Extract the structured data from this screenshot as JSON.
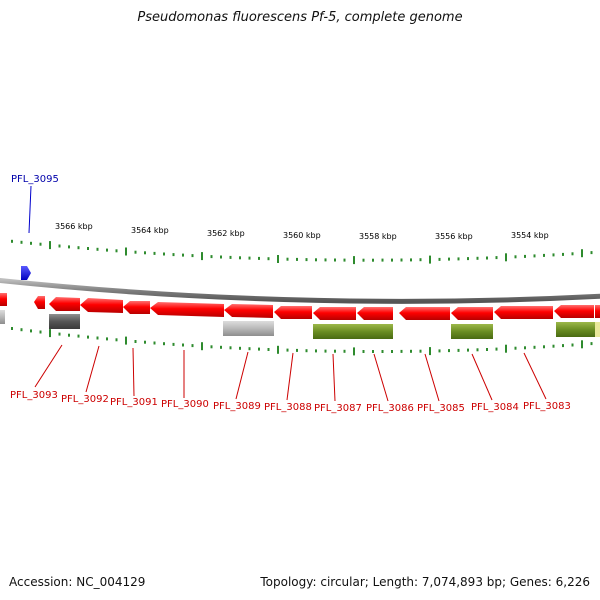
{
  "title": "Pseudomonas fluorescens Pf-5, complete genome",
  "footer": {
    "accession": "Accession: NC_004129",
    "summary": "Topology: circular; Length: 7,074,893 bp; Genes: 6,226"
  },
  "colors": {
    "backbone": "#8c8c8c",
    "forward_gene": "#0000ee",
    "reverse_gene": "#ff1a1a",
    "reverse_label": "#cc0000",
    "forward_label": "#0000aa",
    "tick": "#2e8b2e",
    "feature_olive": "#6b8e23",
    "feature_gray_dark": "#555555",
    "feature_gray_light": "#b8b8b8",
    "feature_yellow": "#e8e89a"
  },
  "scale_labels": [
    "3566 kbp",
    "3564 kbp",
    "3562 kbp",
    "3560 kbp",
    "3558 kbp",
    "3556 kbp",
    "3554 kbp"
  ],
  "forward_genes": [
    {
      "label": "PFL_3095"
    }
  ],
  "reverse_genes": [
    {
      "label": "PFL_3093"
    },
    {
      "label": "PFL_3092"
    },
    {
      "label": "PFL_3091"
    },
    {
      "label": "PFL_3090"
    },
    {
      "label": "PFL_3089"
    },
    {
      "label": "PFL_3088"
    },
    {
      "label": "PFL_3087"
    },
    {
      "label": "PFL_3086"
    },
    {
      "label": "PFL_3085"
    },
    {
      "label": "PFL_3084"
    },
    {
      "label": "PFL_3083"
    }
  ]
}
